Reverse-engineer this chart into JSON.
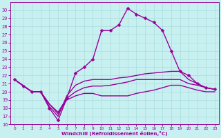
{
  "xlabel": "Windchill (Refroidissement éolien,°C)",
  "bg_color": "#c8f0f0",
  "line_color": "#990099",
  "xlim": [
    -0.5,
    23.5
  ],
  "ylim": [
    16,
    31
  ],
  "yticks": [
    16,
    17,
    18,
    19,
    20,
    21,
    22,
    23,
    24,
    25,
    26,
    27,
    28,
    29,
    30
  ],
  "xticks": [
    0,
    1,
    2,
    3,
    4,
    5,
    6,
    7,
    8,
    9,
    10,
    11,
    12,
    13,
    14,
    15,
    16,
    17,
    18,
    19,
    20,
    21,
    22,
    23
  ],
  "series": [
    {
      "x": [
        0,
        1,
        2,
        3,
        4,
        5,
        6,
        7,
        8,
        9,
        10,
        11,
        12,
        13,
        14,
        15,
        16,
        17,
        18,
        19,
        20,
        21,
        22,
        23
      ],
      "y": [
        21.5,
        20.7,
        20.0,
        20.0,
        18.0,
        16.5,
        19.2,
        22.3,
        23.0,
        24.0,
        27.5,
        27.5,
        28.2,
        30.2,
        29.5,
        29.0,
        28.5,
        27.5,
        25.0,
        22.5,
        22.0,
        21.0,
        20.5,
        20.3
      ],
      "marker": true,
      "markersize": 2.5,
      "lw": 1.0
    },
    {
      "x": [
        0,
        2,
        3,
        4,
        5,
        6,
        7,
        8,
        9,
        10,
        11,
        12,
        13,
        14,
        15,
        16,
        17,
        18,
        19,
        20,
        21,
        22,
        23
      ],
      "y": [
        21.5,
        20.0,
        20.0,
        18.2,
        17.0,
        19.5,
        20.8,
        21.3,
        21.5,
        21.5,
        21.5,
        21.7,
        21.8,
        22.0,
        22.2,
        22.3,
        22.4,
        22.5,
        22.5,
        21.5,
        21.0,
        20.5,
        20.3
      ],
      "marker": false,
      "markersize": 0,
      "lw": 1.0
    },
    {
      "x": [
        0,
        2,
        3,
        4,
        5,
        6,
        7,
        8,
        9,
        10,
        11,
        12,
        13,
        14,
        15,
        16,
        17,
        18,
        19,
        20,
        21,
        22,
        23
      ],
      "y": [
        21.5,
        20.0,
        20.0,
        18.5,
        17.5,
        19.2,
        20.0,
        20.5,
        20.7,
        20.7,
        20.8,
        21.0,
        21.2,
        21.5,
        21.5,
        21.5,
        21.5,
        21.5,
        21.5,
        21.0,
        20.8,
        20.5,
        20.3
      ],
      "marker": false,
      "markersize": 0,
      "lw": 1.0
    },
    {
      "x": [
        0,
        2,
        3,
        4,
        5,
        6,
        7,
        8,
        9,
        10,
        11,
        12,
        13,
        14,
        15,
        16,
        17,
        18,
        19,
        20,
        21,
        22,
        23
      ],
      "y": [
        21.5,
        20.0,
        20.0,
        18.5,
        17.3,
        19.0,
        19.5,
        19.8,
        19.8,
        19.5,
        19.5,
        19.5,
        19.5,
        19.8,
        20.0,
        20.2,
        20.5,
        20.8,
        20.8,
        20.5,
        20.2,
        20.0,
        20.0
      ],
      "marker": false,
      "markersize": 0,
      "lw": 1.0
    }
  ],
  "figsize": [
    3.2,
    2.0
  ],
  "dpi": 100
}
